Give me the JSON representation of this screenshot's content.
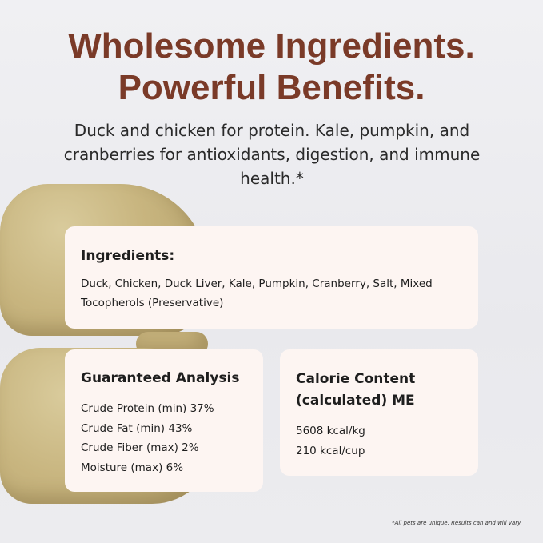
{
  "headline": {
    "line1": "Wholesome Ingredients.",
    "line2": "Powerful Benefits."
  },
  "subheadline": "Duck and chicken for protein. Kale, pumpkin, and cranberries for antioxidants, digestion, and immune health.*",
  "ingredients": {
    "title": "Ingredients:",
    "text": "Duck, Chicken, Duck Liver, Kale, Pumpkin, Cranberry, Salt, Mixed Tocopherols (Preservative)"
  },
  "guaranteed_analysis": {
    "title": "Guaranteed Analysis",
    "items": [
      "Crude Protein (min) 37%",
      "Crude Fat (min) 43%",
      "Crude Fiber (max) 2%",
      "Moisture (max) 6%"
    ]
  },
  "calorie_content": {
    "title": "Calorie Content (calculated) ME",
    "items": [
      "5608 kcal/kg",
      "210 kcal/cup"
    ]
  },
  "disclaimer": "*All pets are unique. Results can and will vary.",
  "colors": {
    "headline": "#7a3a28",
    "card": "#fdf5f2",
    "background": "#ececef"
  }
}
